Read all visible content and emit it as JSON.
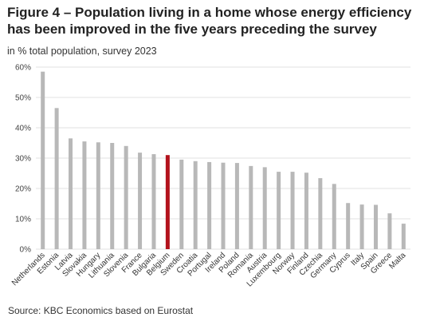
{
  "title": "Figure 4 – Population living in a home whose energy efficiency has been improved in the five years preceding the survey",
  "subtitle": "in % total population, survey 2023",
  "source": "Source: KBC Economics based on Eurostat",
  "colors": {
    "default_bar": "#b8b8b8",
    "highlight_bar": "#b3121c",
    "gridline": "#e2e2e2"
  },
  "chart_data": {
    "type": "bar",
    "title": "Figure 4 – Population living in a home whose energy efficiency has been improved in the five years preceding the survey",
    "subtitle": "in % total population, survey 2023",
    "xlabel": "",
    "ylabel": "",
    "ylim": [
      0,
      60
    ],
    "yticks": [
      0,
      10,
      20,
      30,
      40,
      50,
      60
    ],
    "ytick_labels": [
      "0%",
      "10%",
      "20%",
      "30%",
      "40%",
      "50%",
      "60%"
    ],
    "grid": true,
    "legend": "none",
    "highlight": "Belgium",
    "categories": [
      "Netherlands",
      "Estonia",
      "Latvia",
      "Slovakia",
      "Hungary",
      "Lithuania",
      "Slovenia",
      "France",
      "Bulgaria",
      "Belgium",
      "Sweden",
      "Croatia",
      "Portugal",
      "Ireland",
      "Poland",
      "Romania",
      "Austria",
      "Luxembourg",
      "Norway",
      "Finland",
      "Czechia",
      "Germany",
      "Cyprus",
      "Italy",
      "Spain",
      "Greece",
      "Malta"
    ],
    "values": [
      58.5,
      46.5,
      36.5,
      35.5,
      35.2,
      35.0,
      34.0,
      31.8,
      31.3,
      31.0,
      29.5,
      29.0,
      28.7,
      28.5,
      28.4,
      27.4,
      27.0,
      25.5,
      25.5,
      25.2,
      23.4,
      21.5,
      15.2,
      14.7,
      14.6,
      11.8,
      8.4
    ]
  }
}
